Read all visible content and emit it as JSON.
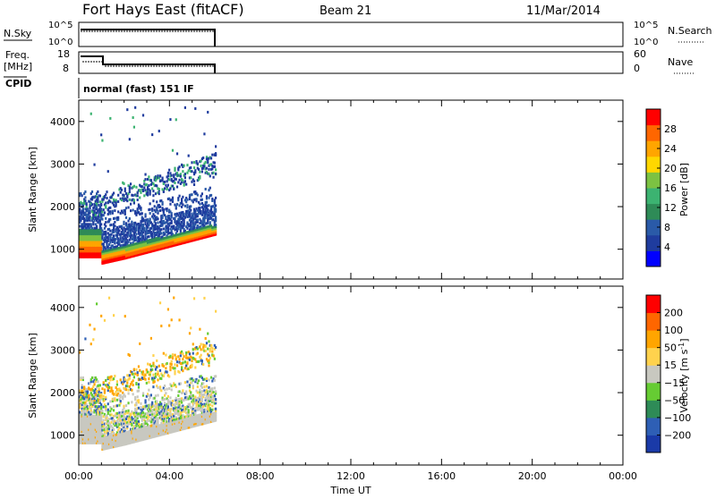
{
  "header": {
    "station": "Fort Hays East (fitACF)",
    "beam": "Beam 21",
    "date": "11/Mar/2014"
  },
  "strip_labels": {
    "nsky": "N.Sky",
    "nsky_ticks": [
      "10^5",
      "10^0"
    ],
    "nsearch": "N.Search",
    "nsearch_ticks": [
      "10^5",
      "10^0"
    ],
    "freq": "Freq.",
    "freq_unit": "[MHz]",
    "freq_ticks": [
      "18",
      "8"
    ],
    "nave": "Nave",
    "nave_ticks": [
      "60",
      "0"
    ],
    "cpid": "CPID",
    "cpid_value": "normal (fast) 151 IF"
  },
  "colors": {
    "power_scale": [
      "#0000ff",
      "#1f3c9e",
      "#2a5aa8",
      "#2e8b57",
      "#3cb371",
      "#7cc242",
      "#ffd700",
      "#ffa500",
      "#ff6600",
      "#ff0000"
    ],
    "velocity_scale": [
      "#1a3aa8",
      "#2e5fb5",
      "#2e8b57",
      "#66cc33",
      "#c8c8c0",
      "#ffd24d",
      "#ffa500",
      "#ff6600",
      "#ff0000"
    ]
  },
  "chart_data": [
    {
      "type": "heatmap",
      "name": "power-panel",
      "title": "",
      "ylabel": "Slant Range [km]",
      "xlabel": "",
      "xlim": [
        0,
        24
      ],
      "ylim": [
        300,
        4500
      ],
      "yticks": [
        1000,
        2000,
        3000,
        4000
      ],
      "colorbar": {
        "label": "Power [dB]",
        "ticks": [
          "4",
          "8",
          "12",
          "16",
          "20",
          "24",
          "28"
        ],
        "range": [
          0,
          32
        ]
      },
      "data_time_range_hours": [
        0,
        6
      ]
    },
    {
      "type": "heatmap",
      "name": "velocity-panel",
      "title": "",
      "ylabel": "Slant Range [km]",
      "xlabel": "Time UT",
      "xlim": [
        0,
        24
      ],
      "ylim": [
        300,
        4500
      ],
      "yticks": [
        1000,
        2000,
        3000,
        4000
      ],
      "xticks": [
        "00:00",
        "04:00",
        "08:00",
        "12:00",
        "16:00",
        "20:00",
        "00:00"
      ],
      "colorbar": {
        "label": "Velocity [m s",
        "label_sup": "-1",
        "label_end": "]",
        "ticks": [
          "200",
          "100",
          "50",
          "15",
          "−15",
          "−50",
          "−100",
          "−200"
        ]
      },
      "data_time_range_hours": [
        0,
        6
      ]
    }
  ]
}
